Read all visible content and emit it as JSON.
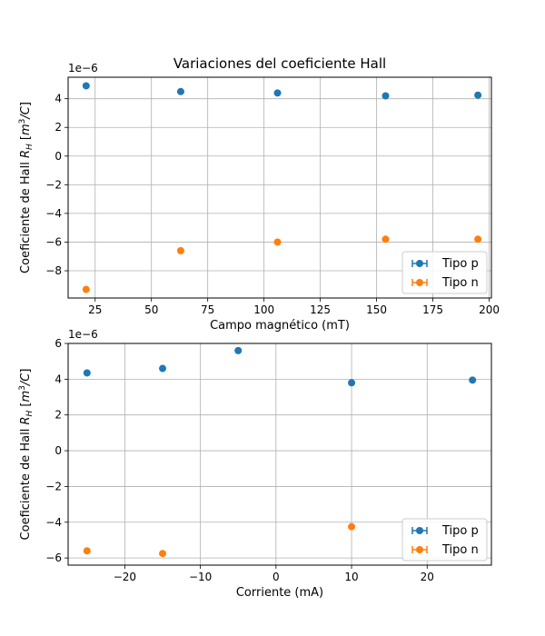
{
  "chart_data": [
    {
      "type": "scatter",
      "title": "Variaciones del coeficiente Hall",
      "xlabel": "Campo magnético (mT)",
      "ylabel": "Coeficiente de Hall R_H [m^3/C]",
      "scale_label": "1e−6",
      "xlim": [
        13,
        201
      ],
      "ylim": [
        -9.9,
        5.5
      ],
      "xticks": [
        25,
        50,
        75,
        100,
        125,
        150,
        175,
        200
      ],
      "yticks": [
        -8,
        -6,
        -4,
        -2,
        0,
        2,
        4
      ],
      "grid": true,
      "legend_position": "lower-right",
      "series": [
        {
          "name": "Tipo p",
          "color": "#1f77b4",
          "x": [
            21,
            63,
            106,
            154,
            195
          ],
          "y": [
            4.9,
            4.5,
            4.4,
            4.2,
            4.25
          ]
        },
        {
          "name": "Tipo n",
          "color": "#ff7f0e",
          "x": [
            21,
            63,
            106,
            154,
            195
          ],
          "y": [
            -9.3,
            -6.6,
            -6.0,
            -5.8,
            -5.8
          ]
        }
      ]
    },
    {
      "type": "scatter",
      "title": "",
      "xlabel": "Corriente (mA)",
      "ylabel": "Coeficiente de Hall R_H [m^3/C]",
      "scale_label": "1e−6",
      "xlim": [
        -27.5,
        28.5
      ],
      "ylim": [
        -6.4,
        6.0
      ],
      "xticks": [
        -20,
        -10,
        0,
        10,
        20
      ],
      "yticks": [
        -6,
        -4,
        -2,
        0,
        2,
        4,
        6
      ],
      "grid": true,
      "legend_position": "lower-right",
      "series": [
        {
          "name": "Tipo p",
          "color": "#1f77b4",
          "x": [
            -25,
            -15,
            -5,
            10,
            26
          ],
          "y": [
            4.35,
            4.6,
            5.6,
            3.8,
            3.95
          ]
        },
        {
          "name": "Tipo n",
          "color": "#ff7f0e",
          "x": [
            -25,
            -15,
            10
          ],
          "y": [
            -5.6,
            -5.75,
            -4.25
          ]
        }
      ]
    }
  ]
}
